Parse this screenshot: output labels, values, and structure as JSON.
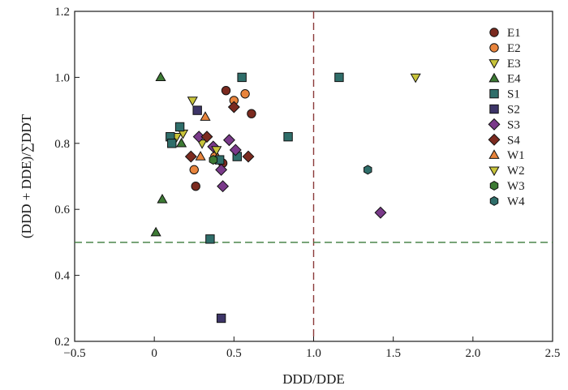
{
  "chart_data": {
    "type": "scatter",
    "title": "",
    "xlabel": "DDD/DDE",
    "ylabel": "(DDD + DDE)/∑DDT",
    "xlim": [
      -0.5,
      2.5
    ],
    "ylim": [
      0.2,
      1.2
    ],
    "xticks": [
      "−0.5",
      "0",
      "0.5",
      "1.0",
      "1.5",
      "2.0",
      "2.5"
    ],
    "xtick_values": [
      -0.5,
      0,
      0.5,
      1.0,
      1.5,
      2.0,
      2.5
    ],
    "yticks": [
      "0.2",
      "0.4",
      "0.6",
      "0.8",
      "1.0",
      "1.2"
    ],
    "ytick_values": [
      0.2,
      0.4,
      0.6,
      0.8,
      1.0,
      1.2
    ],
    "grid": false,
    "legend_position": "top-right",
    "reference_lines": [
      {
        "orientation": "vertical",
        "value": 1.0,
        "color": "#8b3a3a",
        "style": "dashed"
      },
      {
        "orientation": "horizontal",
        "value": 0.5,
        "color": "#3a7a3a",
        "style": "dashed"
      }
    ],
    "series": [
      {
        "name": "E1",
        "marker": "circle",
        "color": "#7b2a1f",
        "points": [
          [
            0.45,
            0.96
          ],
          [
            0.61,
            0.89
          ],
          [
            0.26,
            0.67
          ],
          [
            0.43,
            0.74
          ]
        ]
      },
      {
        "name": "E2",
        "marker": "circle",
        "color": "#e8843c",
        "points": [
          [
            0.5,
            0.93
          ],
          [
            0.57,
            0.95
          ],
          [
            0.25,
            0.72
          ],
          [
            0.38,
            0.76
          ]
        ]
      },
      {
        "name": "E3",
        "marker": "triangle-down",
        "color": "#c8c43a",
        "points": [
          [
            0.14,
            0.82
          ],
          [
            0.18,
            0.83
          ],
          [
            0.3,
            0.8
          ]
        ]
      },
      {
        "name": "E4",
        "marker": "triangle-up",
        "color": "#3d7a34",
        "points": [
          [
            0.04,
            1.0
          ],
          [
            0.05,
            0.63
          ],
          [
            0.01,
            0.53
          ],
          [
            0.17,
            0.8
          ]
        ]
      },
      {
        "name": "S1",
        "marker": "square",
        "color": "#2f6e6a",
        "points": [
          [
            0.55,
            1.0
          ],
          [
            1.16,
            1.0
          ],
          [
            0.84,
            0.82
          ],
          [
            0.1,
            0.82
          ],
          [
            0.16,
            0.85
          ],
          [
            0.11,
            0.8
          ],
          [
            0.52,
            0.76
          ],
          [
            0.41,
            0.75
          ],
          [
            0.35,
            0.51
          ]
        ]
      },
      {
        "name": "S2",
        "marker": "square",
        "color": "#3d3568",
        "points": [
          [
            0.27,
            0.9
          ],
          [
            0.42,
            0.27
          ]
        ]
      },
      {
        "name": "S3",
        "marker": "diamond",
        "color": "#7a3a8a",
        "points": [
          [
            0.47,
            0.81
          ],
          [
            0.51,
            0.78
          ],
          [
            0.28,
            0.82
          ],
          [
            0.42,
            0.72
          ],
          [
            0.43,
            0.67
          ],
          [
            1.42,
            0.59
          ],
          [
            0.37,
            0.79
          ]
        ]
      },
      {
        "name": "S4",
        "marker": "diamond",
        "color": "#7b2a1f",
        "points": [
          [
            0.5,
            0.91
          ],
          [
            0.33,
            0.82
          ],
          [
            0.59,
            0.76
          ],
          [
            0.23,
            0.76
          ]
        ]
      },
      {
        "name": "W1",
        "marker": "triangle-up",
        "color": "#e8843c",
        "points": [
          [
            0.32,
            0.88
          ],
          [
            0.29,
            0.76
          ]
        ]
      },
      {
        "name": "W2",
        "marker": "triangle-down",
        "color": "#c8c43a",
        "points": [
          [
            1.64,
            1.0
          ],
          [
            0.24,
            0.93
          ],
          [
            0.39,
            0.78
          ]
        ]
      },
      {
        "name": "W3",
        "marker": "hexagon",
        "color": "#3d7a34",
        "points": [
          [
            0.37,
            0.75
          ]
        ]
      },
      {
        "name": "W4",
        "marker": "hexagon",
        "color": "#2f6e6a",
        "points": [
          [
            1.34,
            0.72
          ]
        ]
      }
    ]
  }
}
